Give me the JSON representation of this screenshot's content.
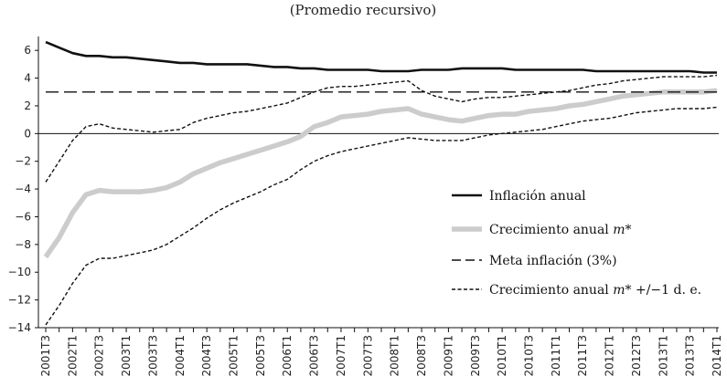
{
  "chart_data": {
    "type": "line",
    "title": "",
    "subtitle": "(Promedio recursivo)",
    "xlabel": "",
    "ylabel": "",
    "ylim": [
      -14,
      7
    ],
    "yticks": [
      6,
      4,
      2,
      0,
      -2,
      -4,
      -6,
      -8,
      -10,
      -12,
      -14
    ],
    "x_tick_labels": [
      "2001T3",
      "2002T1",
      "2002T3",
      "2003T1",
      "2003T3",
      "2004T1",
      "2004T3",
      "2005T1",
      "2005T3",
      "2006T1",
      "2006T3",
      "2007T1",
      "2007T3",
      "2008T1",
      "2008T3",
      "2009T1",
      "2009T3",
      "2010T1",
      "2010T3",
      "2011T1",
      "2011T3",
      "2012T1",
      "2012T3",
      "2013T1",
      "2013T3",
      "2014T1"
    ],
    "periods": [
      "2001T3",
      "2001T4",
      "2002T1",
      "2002T2",
      "2002T3",
      "2002T4",
      "2003T1",
      "2003T2",
      "2003T3",
      "2003T4",
      "2004T1",
      "2004T2",
      "2004T3",
      "2004T4",
      "2005T1",
      "2005T2",
      "2005T3",
      "2005T4",
      "2006T1",
      "2006T2",
      "2006T3",
      "2006T4",
      "2007T1",
      "2007T2",
      "2007T3",
      "2007T4",
      "2008T1",
      "2008T2",
      "2008T3",
      "2008T4",
      "2009T1",
      "2009T2",
      "2009T3",
      "2009T4",
      "2010T1",
      "2010T2",
      "2010T3",
      "2010T4",
      "2011T1",
      "2011T2",
      "2011T3",
      "2011T4",
      "2012T1",
      "2012T2",
      "2012T3",
      "2012T4",
      "2013T1",
      "2013T2",
      "2013T3",
      "2013T4",
      "2014T1"
    ],
    "grid": false,
    "legend_position": "bottom-right",
    "series": [
      {
        "name": "Inflación anual",
        "style": "solid-thick",
        "color": "#111111",
        "values": [
          6.6,
          6.2,
          5.8,
          5.6,
          5.6,
          5.5,
          5.5,
          5.4,
          5.3,
          5.2,
          5.1,
          5.1,
          5.0,
          5.0,
          5.0,
          5.0,
          4.9,
          4.8,
          4.8,
          4.7,
          4.7,
          4.6,
          4.6,
          4.6,
          4.6,
          4.5,
          4.5,
          4.5,
          4.6,
          4.6,
          4.6,
          4.7,
          4.7,
          4.7,
          4.7,
          4.6,
          4.6,
          4.6,
          4.6,
          4.6,
          4.6,
          4.5,
          4.5,
          4.5,
          4.5,
          4.5,
          4.5,
          4.5,
          4.5,
          4.4,
          4.4
        ]
      },
      {
        "name": "Crecimiento anual m*",
        "style": "solid-gray-thick",
        "color": "#cccccc",
        "values": [
          -8.9,
          -7.5,
          -5.7,
          -4.4,
          -4.1,
          -4.2,
          -4.2,
          -4.2,
          -4.1,
          -3.9,
          -3.5,
          -2.9,
          -2.5,
          -2.1,
          -1.8,
          -1.5,
          -1.2,
          -0.9,
          -0.6,
          -0.2,
          0.5,
          0.8,
          1.2,
          1.3,
          1.4,
          1.6,
          1.7,
          1.8,
          1.4,
          1.2,
          1.0,
          0.9,
          1.1,
          1.3,
          1.4,
          1.4,
          1.6,
          1.7,
          1.8,
          2.0,
          2.1,
          2.3,
          2.5,
          2.7,
          2.8,
          2.9,
          3.0,
          3.0,
          3.0,
          3.0,
          3.1
        ]
      },
      {
        "name": "Meta inflación (3%)",
        "style": "long-dash",
        "color": "#111111",
        "values": [
          3,
          3,
          3,
          3,
          3,
          3,
          3,
          3,
          3,
          3,
          3,
          3,
          3,
          3,
          3,
          3,
          3,
          3,
          3,
          3,
          3,
          3,
          3,
          3,
          3,
          3,
          3,
          3,
          3,
          3,
          3,
          3,
          3,
          3,
          3,
          3,
          3,
          3,
          3,
          3,
          3,
          3,
          3,
          3,
          3,
          3,
          3,
          3,
          3,
          3,
          3
        ]
      },
      {
        "name": "Crecimiento anual m* +/−1 d. e.",
        "style": "short-dash",
        "color": "#111111",
        "values": [
          -3.5,
          -2.0,
          -0.5,
          0.5,
          0.7,
          0.4,
          0.3,
          0.2,
          0.1,
          0.2,
          0.3,
          0.8,
          1.1,
          1.3,
          1.5,
          1.6,
          1.8,
          2.0,
          2.2,
          2.6,
          3.0,
          3.3,
          3.4,
          3.4,
          3.5,
          3.6,
          3.7,
          3.8,
          3.1,
          2.7,
          2.5,
          2.3,
          2.5,
          2.6,
          2.6,
          2.7,
          2.8,
          2.9,
          3.0,
          3.1,
          3.3,
          3.5,
          3.6,
          3.8,
          3.9,
          4.0,
          4.1,
          4.1,
          4.1,
          4.1,
          4.2
        ]
      },
      {
        "name": "",
        "style": "short-dash",
        "color": "#111111",
        "values": [
          -13.8,
          -12.4,
          -10.8,
          -9.5,
          -9.0,
          -9.0,
          -8.8,
          -8.6,
          -8.4,
          -8.0,
          -7.4,
          -6.8,
          -6.1,
          -5.5,
          -5.0,
          -4.6,
          -4.2,
          -3.7,
          -3.3,
          -2.6,
          -2.0,
          -1.6,
          -1.3,
          -1.1,
          -0.9,
          -0.7,
          -0.5,
          -0.3,
          -0.4,
          -0.5,
          -0.5,
          -0.5,
          -0.3,
          -0.1,
          0.0,
          0.1,
          0.2,
          0.3,
          0.5,
          0.7,
          0.9,
          1.0,
          1.1,
          1.3,
          1.5,
          1.6,
          1.7,
          1.8,
          1.8,
          1.8,
          1.9
        ]
      }
    ],
    "legend": [
      {
        "label": "Inflación anual",
        "series": 0
      },
      {
        "label": "Crecimiento anual ",
        "italic": "m*",
        "series": 1
      },
      {
        "label": "Meta inflación (3%)",
        "series": 2
      },
      {
        "label": "Crecimiento anual ",
        "italic": "m*",
        "suffix": " +/−1 d. e.",
        "series": 3
      }
    ]
  }
}
